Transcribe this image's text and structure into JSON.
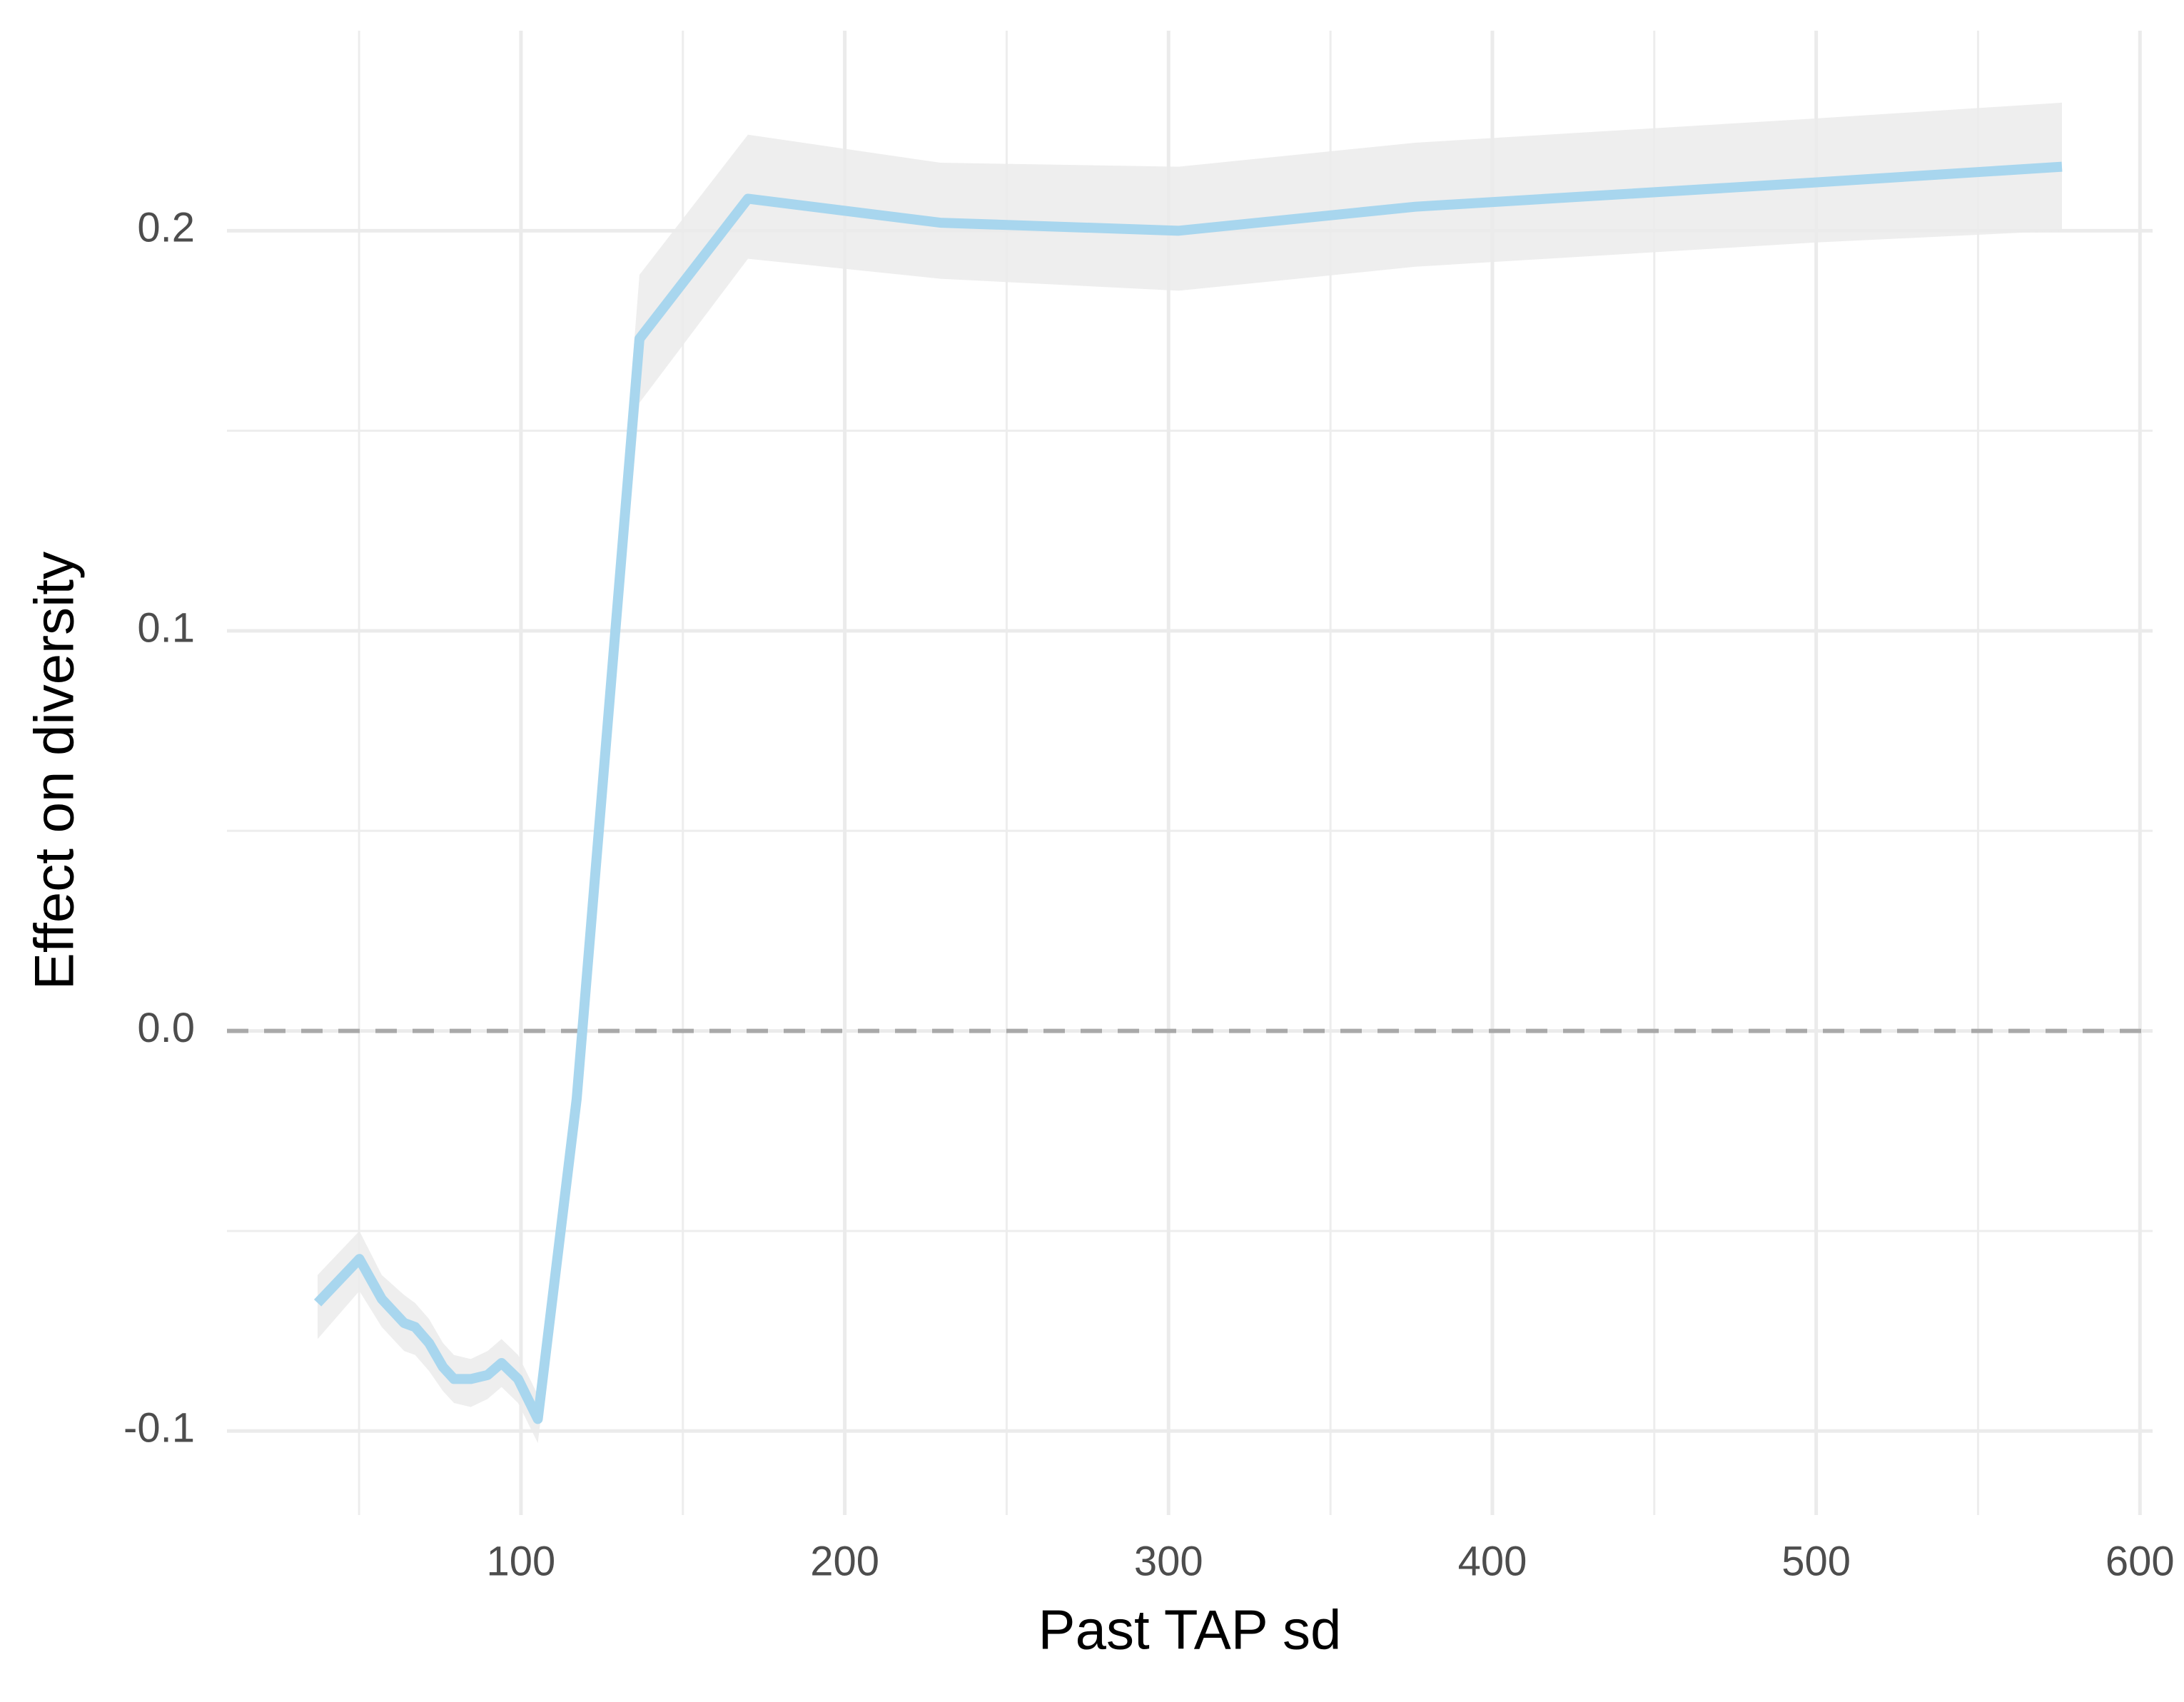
{
  "chart_data": {
    "type": "line",
    "x_label": "Past TAP sd",
    "y_label": "Effect on diversity",
    "xlim": [
      9.2,
      603.9
    ],
    "ylim": [
      -0.121,
      0.25
    ],
    "xticks": [
      100,
      200,
      300,
      400,
      500,
      600
    ],
    "yticks": [
      -0.1,
      {
        "value": 0,
        "label": "0.0"
      },
      0.1,
      0.2
    ],
    "minor_xticks": [
      50,
      150,
      250,
      350,
      450,
      550
    ],
    "minor_yticks": [
      -0.05,
      0.05,
      0.15
    ],
    "grid": true,
    "hline": 0,
    "series": [
      {
        "color": "#a8d6ee",
        "band_color": "#ebebeb",
        "x": [
          37.2,
          50.1,
          57.0,
          63.9,
          67.3,
          71.6,
          75.9,
          79.3,
          84.5,
          89.7,
          94.0,
          99.1,
          105.2,
          117.2,
          136.6,
          170.1,
          229.5,
          303.1,
          376.2,
          498.5,
          575.9
        ],
        "values": [
          -0.068,
          -0.057,
          -0.067,
          -0.073,
          -0.074,
          -0.078,
          -0.084,
          -0.087,
          -0.087,
          -0.086,
          -0.083,
          -0.087,
          -0.097,
          -0.017,
          0.173,
          0.208,
          0.202,
          0.2,
          0.206,
          0.212,
          0.216
        ],
        "upper": [
          -0.061,
          -0.05,
          -0.061,
          -0.066,
          -0.068,
          -0.072,
          -0.078,
          -0.081,
          -0.082,
          -0.08,
          -0.077,
          -0.081,
          -0.091,
          -0.01,
          0.189,
          0.224,
          0.217,
          0.216,
          0.222,
          0.228,
          0.232
        ],
        "lower": [
          -0.077,
          -0.065,
          -0.074,
          -0.08,
          -0.081,
          -0.085,
          -0.09,
          -0.093,
          -0.094,
          -0.092,
          -0.089,
          -0.093,
          -0.103,
          -0.024,
          0.157,
          0.193,
          0.188,
          0.185,
          0.191,
          0.197,
          0.2
        ]
      }
    ]
  }
}
